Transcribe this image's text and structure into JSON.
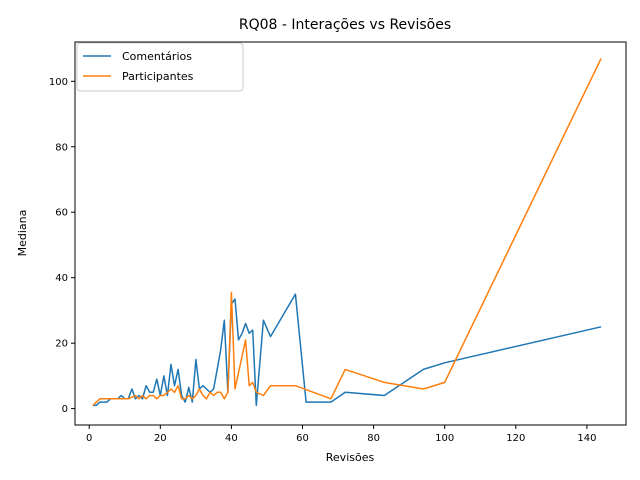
{
  "chart_data": {
    "type": "line",
    "title": "RQ08 - Interações vs Revisões",
    "xlabel": "Revisões",
    "ylabel": "Mediana",
    "xlim": [
      -4,
      151
    ],
    "ylim": [
      -5,
      112
    ],
    "xticks": [
      0,
      20,
      40,
      60,
      80,
      100,
      120,
      140
    ],
    "yticks": [
      0,
      20,
      40,
      60,
      80,
      100
    ],
    "grid": false,
    "legend_position": "top-left",
    "series": [
      {
        "name": "Comentários",
        "color": "#1f77b4",
        "x": [
          1,
          2,
          3,
          4,
          5,
          6,
          7,
          8,
          9,
          10,
          11,
          12,
          13,
          14,
          15,
          16,
          17,
          18,
          19,
          20,
          21,
          22,
          23,
          24,
          25,
          26,
          27,
          28,
          29,
          30,
          31,
          32,
          33,
          34,
          35,
          36,
          37,
          38,
          39,
          40,
          41,
          42,
          43,
          44,
          45,
          46,
          47,
          49,
          51,
          58,
          61,
          68,
          72,
          83,
          94,
          100,
          144
        ],
        "y": [
          1,
          1,
          2,
          2,
          2,
          3,
          3,
          3,
          4,
          3,
          3,
          6,
          3,
          4,
          3,
          7,
          5,
          5,
          9,
          4,
          10,
          4,
          13.5,
          7,
          12,
          4,
          2,
          6.5,
          2,
          15,
          6,
          7,
          6,
          5,
          6,
          12,
          18,
          27,
          5,
          32,
          33.5,
          21,
          23,
          26,
          23,
          24,
          1,
          27,
          22,
          35,
          2,
          2,
          5,
          4,
          12,
          14,
          25
        ]
      },
      {
        "name": "Participantes",
        "color": "#ff7f0e",
        "x": [
          1,
          3,
          5,
          7,
          9,
          11,
          13,
          14,
          15,
          16,
          17,
          18,
          19,
          20,
          21,
          22,
          23,
          24,
          25,
          26,
          27,
          28,
          29,
          30,
          31,
          32,
          33,
          34,
          35,
          36,
          37,
          38,
          39,
          40,
          41,
          44,
          45,
          46,
          47,
          49,
          51,
          58,
          68,
          72,
          83,
          94,
          100,
          144
        ],
        "y": [
          1,
          3,
          3,
          3,
          3,
          3,
          4,
          3,
          4,
          3,
          4,
          4,
          3,
          4,
          4,
          5,
          6,
          5,
          7,
          3,
          3,
          4,
          3,
          4,
          6,
          4,
          3,
          5,
          4,
          5,
          5,
          3,
          5,
          35.5,
          6,
          21,
          7,
          8,
          5,
          4,
          7,
          7,
          3,
          12,
          8,
          6,
          8,
          107
        ]
      }
    ]
  }
}
